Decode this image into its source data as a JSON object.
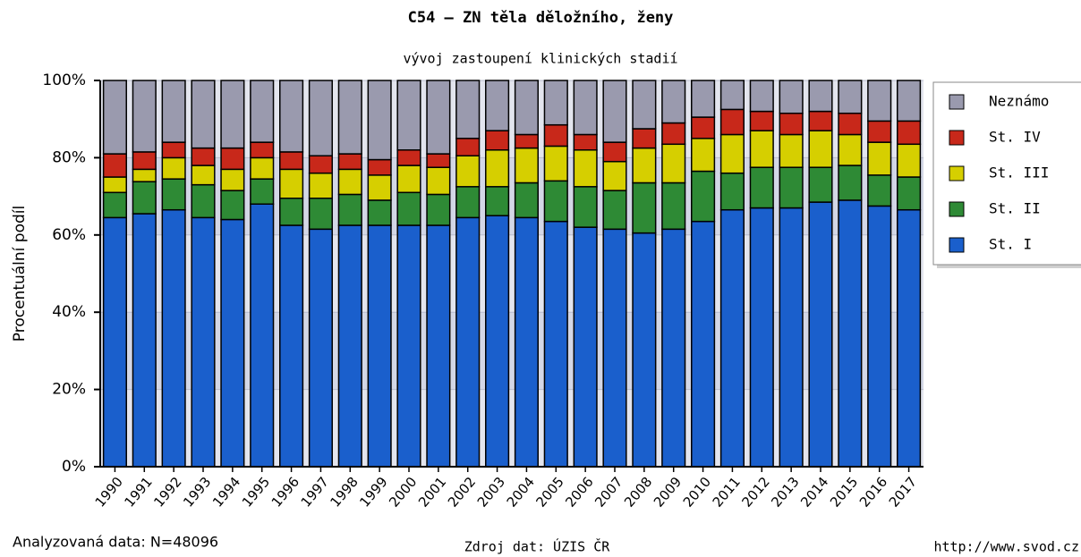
{
  "chart_data": {
    "type": "stacked_bar",
    "title": "C54 – ZN těla děložního, ženy",
    "subtitle": "vývoj zastoupení klinických stadií",
    "y_label": "Procentuální podíl",
    "footer_left": "Analyzovaná data: N=48096",
    "footer_center": "Zdroj dat: ÚZIS ČR",
    "footer_right": "http://www.svod.cz",
    "categories": [
      "1990",
      "1991",
      "1992",
      "1993",
      "1994",
      "1995",
      "1996",
      "1997",
      "1998",
      "1999",
      "2000",
      "2001",
      "2002",
      "2003",
      "2004",
      "2005",
      "2006",
      "2007",
      "2008",
      "2009",
      "2010",
      "2011",
      "2012",
      "2013",
      "2014",
      "2015",
      "2016",
      "2017"
    ],
    "series": [
      {
        "name": "St. I",
        "color": "#1a5fcc",
        "values": [
          64.5,
          65.5,
          66.5,
          64.5,
          64,
          68,
          62.5,
          61.5,
          62.5,
          62.5,
          62.5,
          62.5,
          64.5,
          65,
          64.5,
          63.5,
          62,
          61.5,
          60.5,
          61.5,
          63.5,
          66.5,
          67,
          67,
          68.5,
          69,
          67.5,
          66.5
        ]
      },
      {
        "name": "St. II",
        "color": "#2e8a35",
        "values": [
          6.5,
          8.3,
          8,
          8.5,
          7.5,
          6.5,
          7,
          8,
          8,
          6.5,
          8.5,
          8,
          8,
          7.5,
          9,
          10.5,
          10.5,
          10,
          13,
          12,
          13,
          9.5,
          10.5,
          10.5,
          9,
          9,
          8,
          8.5
        ]
      },
      {
        "name": "St. III",
        "color": "#d6cf00",
        "values": [
          4,
          3.2,
          5.5,
          5,
          5.5,
          5.5,
          7.5,
          6.5,
          6.5,
          6.5,
          7,
          7,
          8,
          9.5,
          9,
          9,
          9.5,
          7.5,
          9,
          10,
          8.5,
          10,
          9.5,
          8.5,
          9.5,
          8,
          8.5,
          8.5
        ]
      },
      {
        "name": "St. IV",
        "color": "#c8281a",
        "values": [
          6,
          4.5,
          4,
          4.5,
          5.5,
          4,
          4.5,
          4.5,
          4,
          4,
          4,
          3.5,
          4.5,
          5,
          3.5,
          5.5,
          4,
          5,
          5,
          5.5,
          5.5,
          6.5,
          5,
          5.5,
          5,
          5.5,
          5.5,
          6
        ]
      },
      {
        "name": "Neznámo",
        "color": "#9a9aae",
        "values": [
          19,
          18.5,
          16,
          17.5,
          17.5,
          16,
          18.5,
          19.5,
          19,
          20.5,
          18,
          19,
          15,
          13,
          14,
          11.5,
          14,
          16,
          12.5,
          11,
          9.5,
          7.5,
          8,
          8.5,
          8,
          8.5,
          10.5,
          10.5
        ]
      }
    ],
    "ylim": [
      0,
      100
    ],
    "yticks": [
      {
        "value": 0,
        "label": "0%"
      },
      {
        "value": 20,
        "label": "20%"
      },
      {
        "value": 40,
        "label": "40%"
      },
      {
        "value": 60,
        "label": "60%"
      },
      {
        "value": 80,
        "label": "80%"
      },
      {
        "value": 100,
        "label": "100%"
      }
    ],
    "grid": true,
    "legend": "right"
  }
}
